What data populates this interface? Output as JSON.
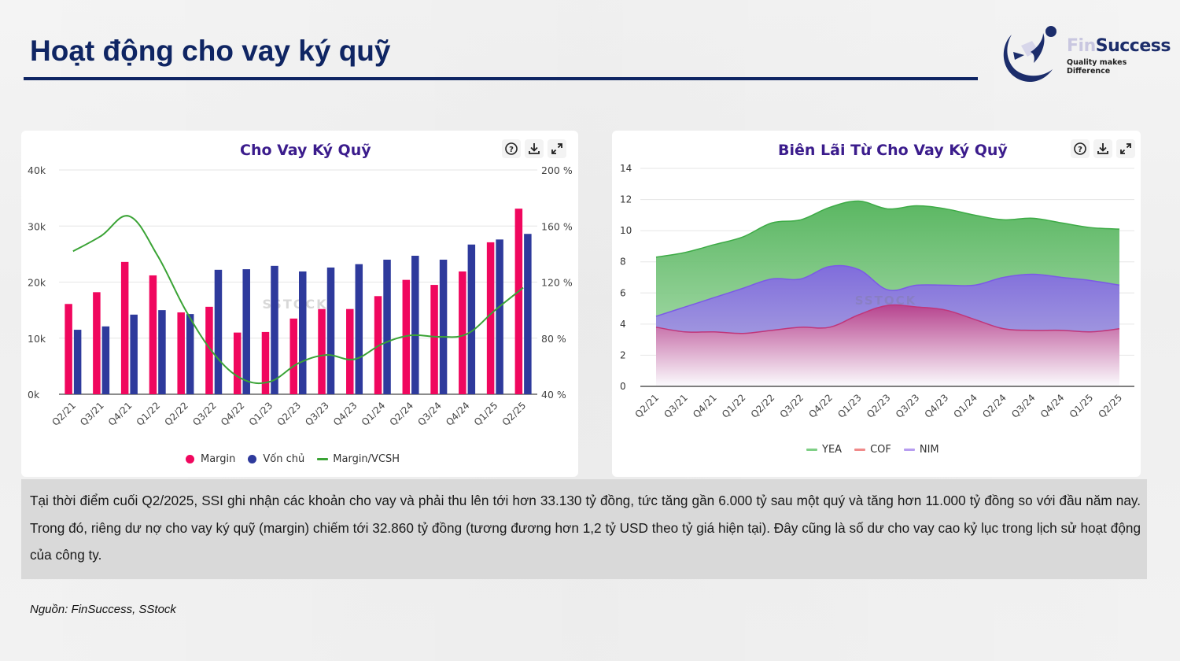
{
  "page": {
    "title": "Hoạt động cho vay ký quỹ",
    "logo": {
      "brand_part1": "Fin",
      "brand_part2": "Success",
      "tagline": "Quality makes Difference"
    },
    "description": "Tại thời điểm cuối Q2/2025, SSI ghi nhận các khoản cho vay và phải thu lên tới hơn 33.130 tỷ đồng, tức tăng gần 6.000 tỷ sau một quý và tăng hơn 11.000 tỷ đồng so với đầu năm nay. Trong đó, riêng dư nợ cho vay ký quỹ (margin) chiếm tới 32.860 tỷ đồng (tương đương hơn 1,2 tỷ USD theo tỷ giá hiện tại). Đây cũng là số dư cho vay cao kỷ lục trong lịch sử hoạt động của công ty.",
    "source": "Nguồn: FinSuccess, SStock",
    "watermark": "SSTOCK",
    "tool_icons": [
      "help-icon",
      "download-icon",
      "fullscreen-icon"
    ]
  },
  "chart_data": [
    {
      "type": "bar",
      "title": "Cho Vay Ký Quỹ",
      "categories": [
        "Q2/21",
        "Q3/21",
        "Q4/21",
        "Q1/22",
        "Q2/22",
        "Q3/22",
        "Q4/22",
        "Q1/23",
        "Q2/23",
        "Q3/23",
        "Q4/23",
        "Q1/24",
        "Q2/24",
        "Q3/24",
        "Q4/24",
        "Q1/25",
        "Q2/25"
      ],
      "ylim": [
        0,
        40000
      ],
      "y_ticks": [
        "0k",
        "10k",
        "20k",
        "30k",
        "40k"
      ],
      "y2lim": [
        40,
        200
      ],
      "y2_ticks": [
        "40 %",
        "80 %",
        "120 %",
        "160 %",
        "200 %"
      ],
      "grid": true,
      "legend_position": "bottom",
      "series": [
        {
          "name": "Margin",
          "kind": "bar",
          "axis": "left",
          "color": "#f0075e",
          "values": [
            16100,
            18200,
            23600,
            21200,
            14600,
            15600,
            11000,
            11100,
            13500,
            15200,
            15200,
            17500,
            20400,
            19500,
            21900,
            27100,
            33100
          ]
        },
        {
          "name": "Vốn chủ",
          "kind": "bar",
          "axis": "left",
          "color": "#2e3a9c",
          "values": [
            11500,
            12100,
            14200,
            15000,
            14300,
            22200,
            22300,
            22900,
            21900,
            22600,
            23200,
            24000,
            24700,
            24000,
            26700,
            27600,
            28600
          ]
        },
        {
          "name": "Margin/VCSH",
          "kind": "line",
          "axis": "right",
          "color": "#3aa335",
          "values": [
            142,
            153,
            167,
            139,
            100,
            69,
            51,
            49,
            62,
            68,
            65,
            76,
            82,
            81,
            83,
            100,
            116
          ]
        }
      ]
    },
    {
      "type": "area",
      "title": "Biên Lãi Từ Cho Vay Ký Quỹ",
      "categories": [
        "Q2/21",
        "Q3/21",
        "Q4/21",
        "Q1/22",
        "Q2/22",
        "Q3/22",
        "Q4/22",
        "Q1/23",
        "Q2/23",
        "Q3/23",
        "Q4/23",
        "Q1/24",
        "Q2/24",
        "Q3/24",
        "Q4/24",
        "Q1/25",
        "Q2/25"
      ],
      "ylim": [
        0,
        14
      ],
      "y_ticks": [
        "0",
        "2",
        "4",
        "6",
        "8",
        "10",
        "12",
        "14"
      ],
      "grid": true,
      "legend_position": "bottom",
      "series": [
        {
          "name": "YEA",
          "color": "#3dab46",
          "legend_color": "#7fcf86",
          "values": [
            8.3,
            8.6,
            9.1,
            9.6,
            10.5,
            10.7,
            11.5,
            11.9,
            11.4,
            11.6,
            11.4,
            11.0,
            10.7,
            10.8,
            10.5,
            10.2,
            10.1
          ]
        },
        {
          "name": "COF",
          "color": "#c0367a",
          "legend_color": "#f08a8a",
          "values": [
            3.8,
            3.5,
            3.5,
            3.4,
            3.6,
            3.8,
            3.8,
            4.6,
            5.2,
            5.1,
            4.9,
            4.3,
            3.7,
            3.6,
            3.6,
            3.5,
            3.7
          ]
        },
        {
          "name": "NIM",
          "color": "#7b5ae6",
          "legend_color": "#b79df0",
          "values": [
            4.5,
            5.1,
            5.7,
            6.3,
            6.9,
            6.9,
            7.7,
            7.5,
            6.2,
            6.5,
            6.5,
            6.5,
            7.0,
            7.2,
            7.0,
            6.8,
            6.5
          ]
        }
      ]
    }
  ]
}
